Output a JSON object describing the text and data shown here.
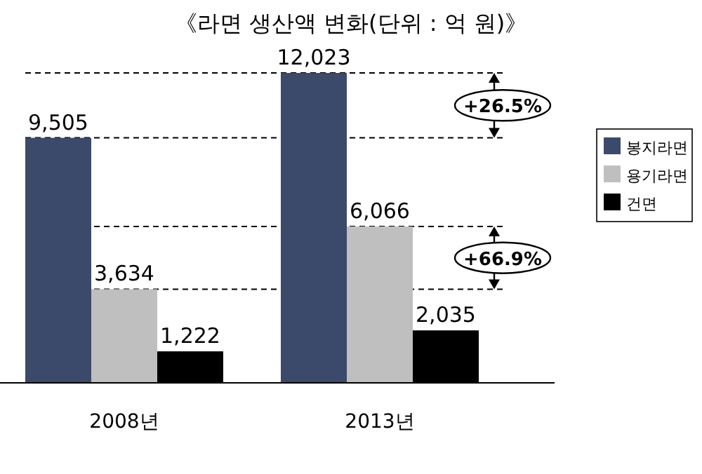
{
  "chart_data": {
    "type": "bar",
    "title": "《라면 생산액 변화(단위 : 억 원)》",
    "categories": [
      "2008년",
      "2013년"
    ],
    "series": [
      {
        "name": "봉지라면",
        "color": "#3b4a6b",
        "values": [
          9505,
          12023
        ],
        "value_labels": [
          "9,505",
          "12,023"
        ]
      },
      {
        "name": "용기라면",
        "color": "#bfbfbf",
        "values": [
          3634,
          6066
        ],
        "value_labels": [
          "3,634",
          "6,066"
        ]
      },
      {
        "name": "건면",
        "color": "#000000",
        "values": [
          1222,
          2035
        ],
        "value_labels": [
          "1,222",
          "2,035"
        ]
      }
    ],
    "annotations": [
      "+26.5%",
      "+66.9%"
    ],
    "ref_lines": [
      {
        "axis": "y",
        "value": 9505,
        "line_style": "dashed"
      },
      {
        "axis": "y",
        "value": 12023,
        "line_style": "dashed"
      },
      {
        "axis": "y",
        "value": 3634,
        "line_style": "dashed"
      },
      {
        "axis": "y",
        "value": 6066,
        "line_style": "dashed"
      }
    ],
    "legend": "right"
  }
}
